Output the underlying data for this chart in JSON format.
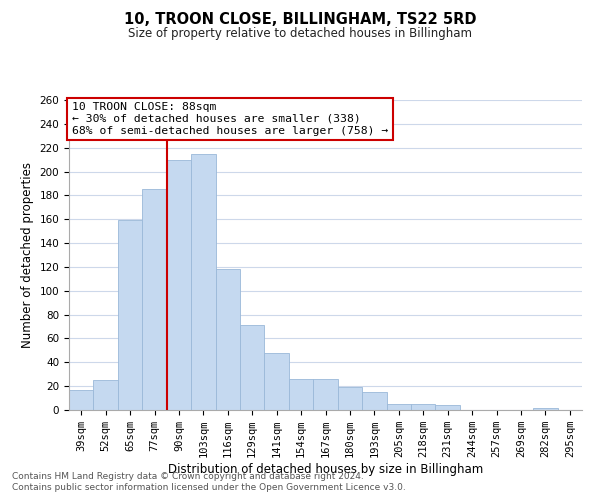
{
  "title": "10, TROON CLOSE, BILLINGHAM, TS22 5RD",
  "subtitle": "Size of property relative to detached houses in Billingham",
  "xlabel": "Distribution of detached houses by size in Billingham",
  "ylabel": "Number of detached properties",
  "footnote1": "Contains HM Land Registry data © Crown copyright and database right 2024.",
  "footnote2": "Contains public sector information licensed under the Open Government Licence v3.0.",
  "bar_labels": [
    "39sqm",
    "52sqm",
    "65sqm",
    "77sqm",
    "90sqm",
    "103sqm",
    "116sqm",
    "129sqm",
    "141sqm",
    "154sqm",
    "167sqm",
    "180sqm",
    "193sqm",
    "205sqm",
    "218sqm",
    "231sqm",
    "244sqm",
    "257sqm",
    "269sqm",
    "282sqm",
    "295sqm"
  ],
  "bar_values": [
    17,
    25,
    159,
    185,
    210,
    215,
    118,
    71,
    48,
    26,
    26,
    19,
    15,
    5,
    5,
    4,
    0,
    0,
    0,
    2,
    0
  ],
  "bar_color": "#c5d9f0",
  "bar_edge_color": "#9ab8d8",
  "vline_color": "#cc0000",
  "vline_pos": 3.5,
  "annotation_title": "10 TROON CLOSE: 88sqm",
  "annotation_line1": "← 30% of detached houses are smaller (338)",
  "annotation_line2": "68% of semi-detached houses are larger (758) →",
  "annotation_box_color": "#ffffff",
  "annotation_box_edge": "#cc0000",
  "ylim": [
    0,
    260
  ],
  "yticks": [
    0,
    20,
    40,
    60,
    80,
    100,
    120,
    140,
    160,
    180,
    200,
    220,
    240,
    260
  ],
  "background_color": "#ffffff",
  "grid_color": "#cdd8ea",
  "title_fontsize": 10.5,
  "subtitle_fontsize": 8.5,
  "ylabel_fontsize": 8.5,
  "xlabel_fontsize": 8.5,
  "tick_fontsize": 7.5,
  "footnote_fontsize": 6.5
}
